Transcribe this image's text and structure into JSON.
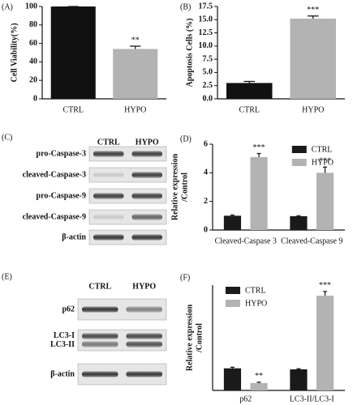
{
  "chart_data": [
    {
      "type": "bar",
      "panel_label": "(A)",
      "ylabel": [
        "Cell Viability(%)"
      ],
      "categories": [
        "CTRL",
        "HYPO"
      ],
      "values": [
        100,
        54
      ],
      "errors": [
        0,
        3
      ],
      "colors": [
        "#111111",
        "#b3b3b3"
      ],
      "annotations": [
        null,
        "**"
      ],
      "ylim": [
        0,
        100
      ],
      "yticks": [
        0,
        20,
        40,
        60,
        80,
        100
      ]
    },
    {
      "type": "bar",
      "panel_label": "(B)",
      "ylabel": [
        "Apoptosis Cells (%)"
      ],
      "categories": [
        "CTRL",
        "HYPO"
      ],
      "values": [
        3.0,
        15.2
      ],
      "errors": [
        0.3,
        0.5
      ],
      "colors": [
        "#111111",
        "#b3b3b3"
      ],
      "annotations": [
        null,
        "***"
      ],
      "ylim": [
        0,
        17.5
      ],
      "yticks": [
        {
          "value": 0,
          "label": "0.0"
        },
        2.5,
        {
          "value": 5,
          "label": "5.0"
        },
        7.5,
        {
          "value": 10,
          "label": "10.0"
        },
        12.5,
        {
          "value": 15,
          "label": "15.0"
        },
        17.5
      ]
    },
    {
      "type": "bar",
      "panel_label": "(D)",
      "ylabel": [
        "Relative expression",
        "/Control"
      ],
      "categories": [
        "Cleaved-Caspase 3",
        "Cleaved-Caspase 9"
      ],
      "series": [
        {
          "name": "CTRL",
          "color": "#1a1a1a",
          "values": [
            1.0,
            0.97
          ],
          "errors": [
            0.05,
            0.03
          ]
        },
        {
          "name": "HYPO",
          "color": "#b3b3b3",
          "values": [
            5.1,
            4.0
          ],
          "errors": [
            0.25,
            0.4
          ],
          "annotations": [
            "***",
            "***"
          ]
        }
      ],
      "legend": "upper right",
      "ylim": [
        0,
        6
      ],
      "yticks": [
        0,
        2,
        4,
        6
      ]
    },
    {
      "type": "bar",
      "panel_label": "(F)",
      "ylabel": [
        "Relative expression",
        "/Control"
      ],
      "categories": [
        "p62",
        "LC3-II/LC3-I"
      ],
      "series": [
        {
          "name": "CTRL",
          "color": "#1a1a1a",
          "values": [
            1.05,
            1.0
          ],
          "errors": [
            0.05,
            0.03
          ]
        },
        {
          "name": "HYPO",
          "color": "#b3b3b3",
          "values": [
            0.35,
            4.5
          ],
          "errors": [
            0.04,
            0.2
          ],
          "annotations": [
            "**",
            "***"
          ]
        }
      ],
      "legend": "upper left",
      "ylim": [
        0,
        5
      ]
    }
  ],
  "blots": [
    {
      "panel_label": "(C)",
      "columns": [
        "CTRL",
        "HYPO"
      ],
      "rows": [
        [
          "pro-Caspase-3"
        ],
        [
          "cleaved-Caspase-3"
        ],
        [
          "pro-Caspase-9"
        ],
        [
          "cleaved-Caspase-9"
        ],
        [
          "β-actin"
        ]
      ]
    },
    {
      "panel_label": "(E)",
      "columns": [
        "CTRL",
        "HYPO"
      ],
      "rows": [
        [
          "p62"
        ],
        [
          "LC3-I",
          "LC3-II"
        ],
        [
          "β-actin"
        ]
      ]
    }
  ]
}
